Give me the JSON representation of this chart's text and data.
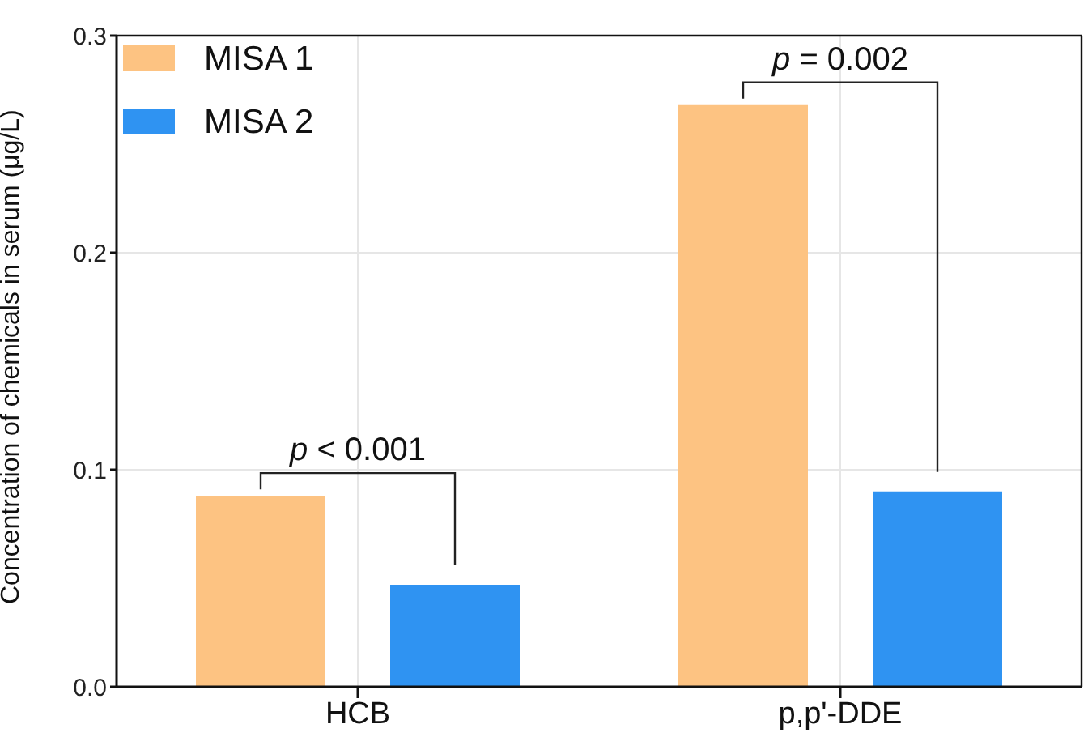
{
  "chart_data": {
    "type": "bar",
    "ylabel": "Concentration of chemicals in serum  (μg/L)",
    "categories": [
      "HCB",
      "p,p'-DDE"
    ],
    "series": [
      {
        "name": "MISA 1",
        "color": "#fdc382",
        "values": [
          0.088,
          0.268
        ]
      },
      {
        "name": "MISA 2",
        "color": "#2f93f2",
        "values": [
          0.047,
          0.09
        ]
      }
    ],
    "ylim": [
      0,
      0.3
    ],
    "yticks": [
      {
        "value": 0,
        "label": "0.0"
      },
      0.1,
      0.2,
      0.3
    ],
    "grid": true,
    "legend": "top left",
    "annotations": [
      "p < 0.001",
      "p = 0.002"
    ]
  }
}
